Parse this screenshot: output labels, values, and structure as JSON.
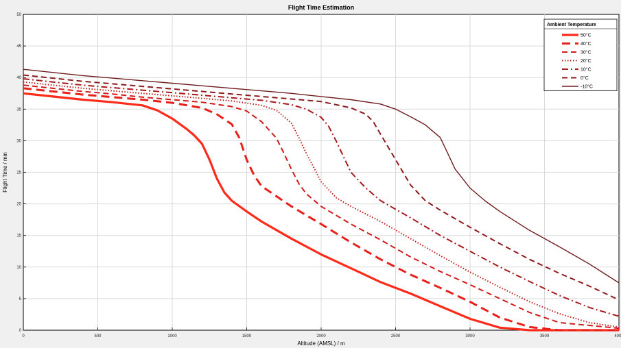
{
  "chart_data": {
    "type": "line",
    "title": "Flight Time Estimation",
    "xlabel": "Altitude (AMSL) / m",
    "ylabel": "Flight Time / min",
    "xlim": [
      0,
      4000
    ],
    "ylim": [
      0,
      50
    ],
    "xticks": [
      0,
      500,
      1000,
      1500,
      2000,
      2500,
      3000,
      3500,
      4000
    ],
    "yticks": [
      0,
      5,
      10,
      15,
      20,
      25,
      30,
      35,
      40,
      45,
      50
    ],
    "grid": true,
    "legend": {
      "title": "Ambient Temperature",
      "position": "top-right"
    },
    "series": [
      {
        "name": "50°C",
        "color": "#ff2a1a",
        "style": "solid-thick",
        "x": [
          0,
          200,
          400,
          600,
          800,
          900,
          1000,
          1100,
          1150,
          1200,
          1250,
          1300,
          1350,
          1400,
          1500,
          1600,
          1800,
          2000,
          2200,
          2400,
          2600,
          2800,
          3000,
          3200,
          3400,
          3600,
          4000
        ],
        "y": [
          37.5,
          37,
          36.5,
          36.1,
          35.6,
          34.8,
          33.5,
          31.8,
          30.8,
          29.5,
          27,
          24,
          21.8,
          20.5,
          18.8,
          17.2,
          14.5,
          12,
          9.8,
          7.6,
          5.8,
          3.8,
          1.8,
          0.4,
          0,
          0,
          0
        ]
      },
      {
        "name": "40°C",
        "color": "#e8201a",
        "style": "dashed-thick",
        "x": [
          0,
          200,
          400,
          600,
          800,
          1000,
          1200,
          1300,
          1400,
          1450,
          1500,
          1550,
          1600,
          1700,
          1800,
          2000,
          2200,
          2400,
          2600,
          2800,
          3000,
          3200,
          3400,
          3600,
          4000
        ],
        "y": [
          38.3,
          37.8,
          37.3,
          36.9,
          36.5,
          36,
          35.2,
          34.2,
          32.6,
          30.5,
          27,
          24.5,
          22.8,
          21.2,
          19.6,
          16.8,
          13.9,
          11.2,
          8.8,
          6.7,
          4.5,
          2,
          0.5,
          0,
          0
        ]
      },
      {
        "name": "30°C",
        "color": "#d21a1a",
        "style": "dashed",
        "x": [
          0,
          200,
          400,
          600,
          800,
          1000,
          1200,
          1400,
          1500,
          1600,
          1700,
          1750,
          1800,
          1850,
          1900,
          2000,
          2200,
          2400,
          2600,
          2800,
          3000,
          3200,
          3400,
          3600,
          4000
        ],
        "y": [
          38.8,
          38.3,
          37.8,
          37.4,
          36.9,
          36.5,
          36.1,
          35.4,
          34.7,
          33,
          30.4,
          28,
          25.5,
          23.2,
          21.6,
          19.6,
          16.8,
          14.3,
          11.6,
          9.3,
          7.2,
          5,
          2.8,
          1.2,
          0.3
        ]
      },
      {
        "name": "20°C",
        "color": "#c01818",
        "style": "dotted",
        "x": [
          0,
          200,
          400,
          600,
          800,
          1000,
          1200,
          1400,
          1600,
          1700,
          1800,
          1850,
          1900,
          1950,
          2000,
          2100,
          2200,
          2400,
          2600,
          2800,
          3000,
          3200,
          3400,
          3600,
          3800,
          4000
        ],
        "y": [
          39.3,
          38.8,
          38.3,
          37.9,
          37.5,
          37.1,
          36.7,
          36.3,
          35.6,
          34.8,
          32.8,
          30.5,
          28,
          25.8,
          23.5,
          21,
          19.6,
          17.2,
          14.5,
          11.8,
          9.2,
          6.8,
          4.5,
          2.6,
          1.2,
          0.5
        ]
      },
      {
        "name": "10°C",
        "color": "#a8181a",
        "style": "dashdot",
        "x": [
          0,
          200,
          400,
          600,
          800,
          1000,
          1200,
          1400,
          1600,
          1800,
          1900,
          2000,
          2050,
          2100,
          2150,
          2200,
          2300,
          2400,
          2600,
          2800,
          3000,
          3200,
          3400,
          3600,
          3800,
          4000
        ],
        "y": [
          39.8,
          39.3,
          38.8,
          38.4,
          38,
          37.6,
          37.2,
          36.8,
          36.4,
          35.7,
          35,
          33.7,
          32.3,
          30,
          27.5,
          25,
          22.5,
          20.5,
          17.8,
          15,
          12.5,
          10,
          7.7,
          5.5,
          3.6,
          2.2
        ]
      },
      {
        "name": "0°C",
        "color": "#8c1a1c",
        "style": "dashed",
        "x": [
          0,
          200,
          400,
          600,
          800,
          1000,
          1200,
          1400,
          1600,
          1800,
          2000,
          2200,
          2300,
          2350,
          2400,
          2500,
          2600,
          2700,
          2800,
          3000,
          3200,
          3400,
          3600,
          3800,
          4000
        ],
        "y": [
          40.4,
          39.9,
          39.4,
          39,
          38.6,
          38.2,
          37.8,
          37.4,
          37,
          36.6,
          36.2,
          35.2,
          34.2,
          33,
          31,
          27,
          23,
          20.5,
          19,
          16.3,
          13.7,
          11.2,
          9,
          7,
          4.8
        ]
      },
      {
        "name": "-10°C",
        "color": "#6e1c1e",
        "style": "solid",
        "x": [
          0,
          200,
          400,
          600,
          800,
          1000,
          1200,
          1400,
          1600,
          1800,
          2000,
          2200,
          2400,
          2500,
          2600,
          2700,
          2800,
          2850,
          2900,
          3000,
          3100,
          3200,
          3400,
          3600,
          3800,
          4000
        ],
        "y": [
          41.3,
          40.8,
          40.3,
          39.9,
          39.5,
          39.1,
          38.7,
          38.3,
          37.9,
          37.5,
          37,
          36.5,
          35.8,
          35,
          33.8,
          32.5,
          30.5,
          28,
          25.5,
          22.5,
          20.5,
          18.8,
          15.8,
          13.2,
          10.5,
          7.5
        ]
      }
    ]
  }
}
